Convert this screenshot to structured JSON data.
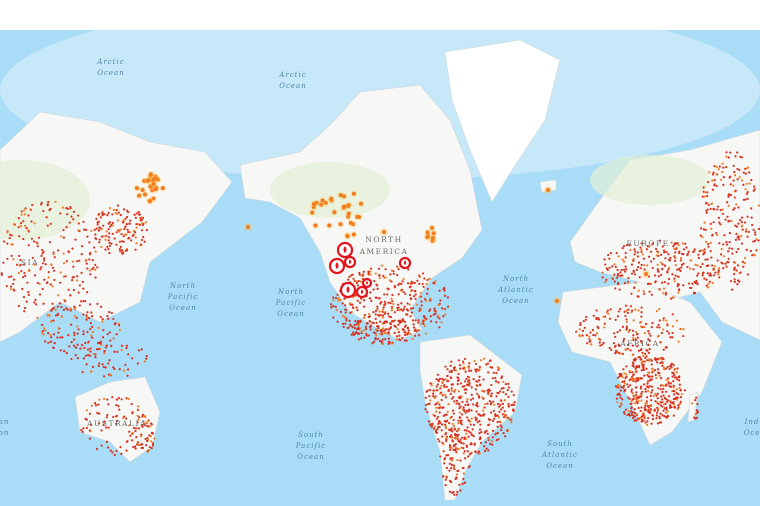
{
  "map": {
    "colors": {
      "ocean": "#a9dcf7",
      "ocean_deep": "#8fd0f2",
      "land": "#f7f7f5",
      "vegetation": "#e2efd6",
      "ice": "#ffffff",
      "fire_small": "#d7301f",
      "fire_medium": "#f07b22",
      "fire_glow": "#fdc04a",
      "fire_large": "#e4121b"
    },
    "ocean_labels": [
      {
        "line1": "Arctic",
        "line2": "Ocean"
      },
      {
        "line1": "Arctic",
        "line2": "Ocean"
      },
      {
        "line1": "North",
        "line2": "Pacific",
        "line3": "Ocean"
      },
      {
        "line1": "North",
        "line2": "Pacific",
        "line3": "Ocean"
      },
      {
        "line1": "North",
        "line2": "Atlantic",
        "line3": "Ocean"
      },
      {
        "line1": "South",
        "line2": "Pacific",
        "line3": "Ocean"
      },
      {
        "line1": "South",
        "line2": "Atlantic",
        "line3": "Ocean"
      },
      {
        "line1": "Ind",
        "line2": "Oce"
      },
      {
        "line1": "an",
        "line2": "on"
      }
    ],
    "continent_labels": {
      "north_america_1": "NORTH",
      "north_america_2": "AMERICA",
      "asia": "SIA",
      "europe": "EUROPE",
      "africa": "AFRICA",
      "australia": "AUSTRALIA"
    },
    "layers": [
      "fire-hotspots",
      "large-fire-incidents"
    ]
  }
}
